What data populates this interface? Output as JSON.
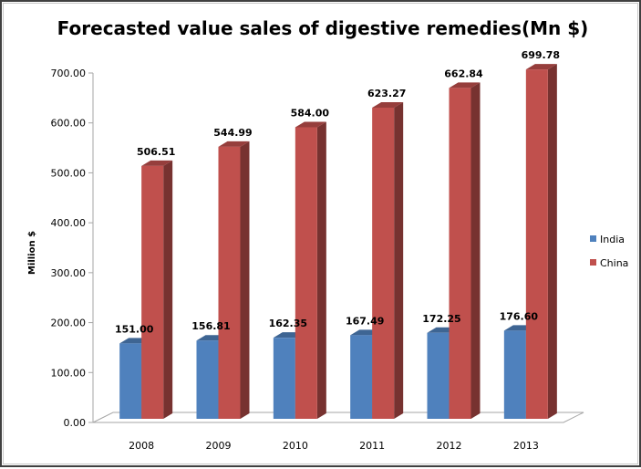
{
  "chart_data": {
    "type": "bar",
    "style": "3d-clustered-column",
    "title": "Forecasted value sales of digestive remedies(Mn $)",
    "xlabel": "",
    "ylabel": "Million $",
    "ylim": [
      0,
      700
    ],
    "ytick_step": 100,
    "ytick_labels": [
      "0.00",
      "100.00",
      "200.00",
      "300.00",
      "400.00",
      "500.00",
      "600.00",
      "700.00"
    ],
    "categories": [
      "2008",
      "2009",
      "2010",
      "2011",
      "2012",
      "2013"
    ],
    "series": [
      {
        "name": "India",
        "color": "#4F81BD",
        "values": [
          151.0,
          156.81,
          162.35,
          167.49,
          172.25,
          176.6
        ],
        "labels": [
          "151.00",
          "156.81",
          "162.35",
          "167.49",
          "172.25",
          "176.60"
        ]
      },
      {
        "name": "China",
        "color": "#C0504D",
        "values": [
          506.51,
          544.99,
          584.0,
          623.27,
          662.84,
          699.78
        ],
        "labels": [
          "506.51",
          "544.99",
          "584.00",
          "623.27",
          "662.84",
          "699.78"
        ]
      }
    ],
    "grid": false,
    "legend": "right"
  }
}
